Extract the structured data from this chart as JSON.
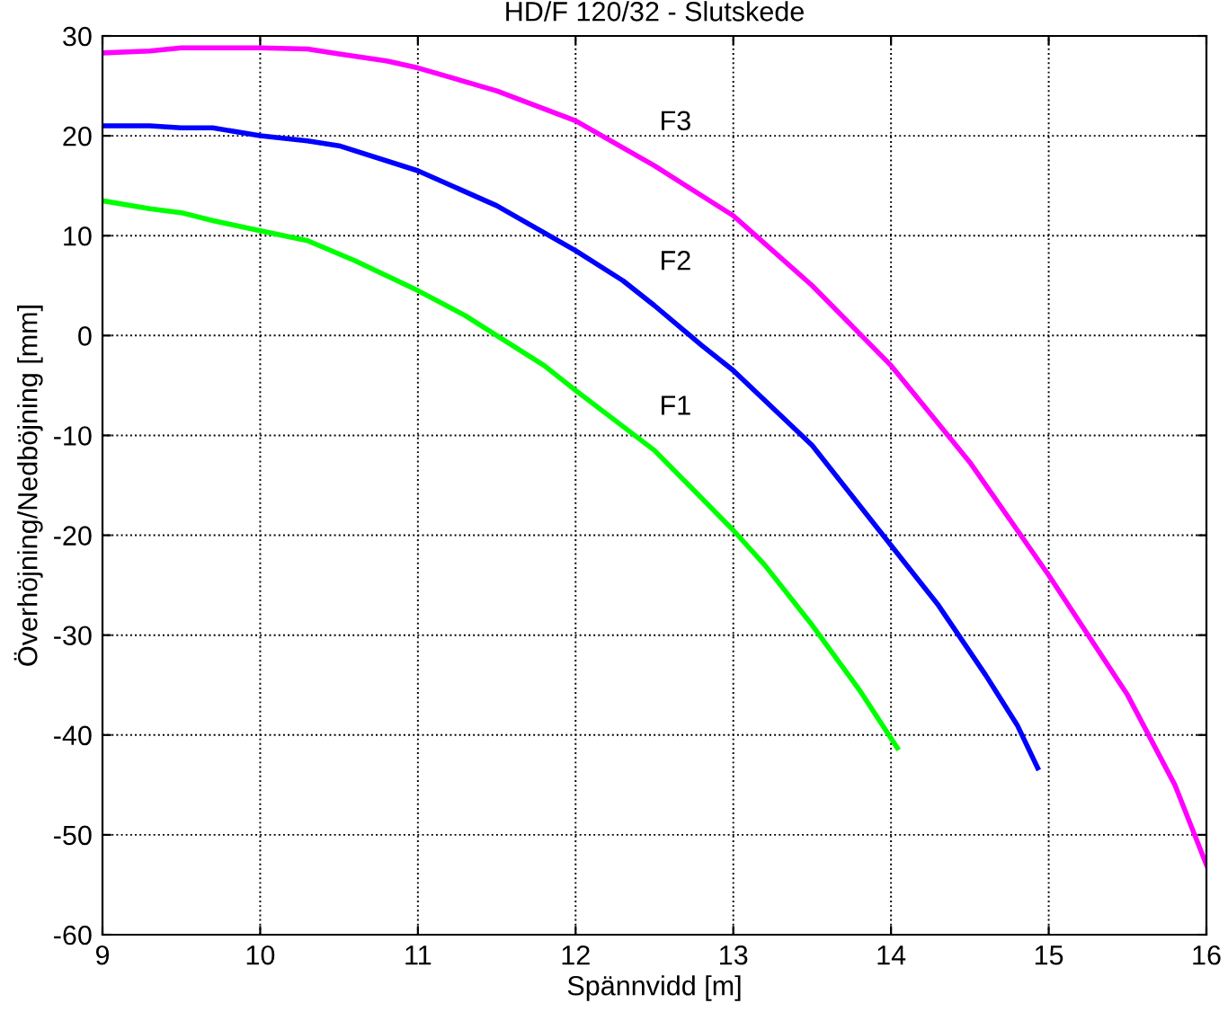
{
  "chart_data": {
    "type": "line",
    "title": "HD/F 120/32 - Slutskede",
    "xlabel": "Spännvidd [m]",
    "ylabel": "Överhöjning/Nedböjning [mm]",
    "xlim": [
      9,
      16
    ],
    "xticks": [
      9,
      10,
      11,
      12,
      13,
      14,
      15,
      16
    ],
    "ylim": [
      -60,
      30
    ],
    "yticks": [
      -60,
      -50,
      -40,
      -30,
      -20,
      -10,
      0,
      10,
      20,
      30
    ],
    "grid": true,
    "line_style": "solid",
    "series": [
      {
        "name": "F1",
        "color": "#00ff00",
        "x": [
          9,
          9.3,
          9.5,
          9.7,
          10,
          10.3,
          10.6,
          11,
          11.3,
          11.5,
          11.8,
          12,
          12.5,
          13,
          13.2,
          13.5,
          13.8,
          14.04
        ],
        "values": [
          13.5,
          12.7,
          12.3,
          11.5,
          10.5,
          9.5,
          7.5,
          4.5,
          2,
          0,
          -3,
          -5.5,
          -11.5,
          -19.5,
          -23,
          -29,
          -35.5,
          -41.3
        ]
      },
      {
        "name": "F2",
        "color": "#0000ff",
        "x": [
          9,
          9.3,
          9.5,
          9.7,
          10,
          10.3,
          10.5,
          11,
          11.5,
          12,
          12.3,
          12.5,
          12.8,
          13,
          13.5,
          14,
          14.3,
          14.6,
          14.8,
          14.93
        ],
        "values": [
          21,
          21,
          20.8,
          20.8,
          20,
          19.5,
          19,
          16.5,
          13,
          8.5,
          5.5,
          3,
          -1,
          -3.5,
          -11,
          -21,
          -27,
          -34,
          -39,
          -43.3
        ]
      },
      {
        "name": "F3",
        "color": "#ff00ff",
        "x": [
          9,
          9.3,
          9.5,
          10,
          10.3,
          10.5,
          10.8,
          11,
          11.5,
          12,
          12.5,
          12.8,
          13,
          13.5,
          14,
          14.5,
          15,
          15.5,
          15.8,
          16
        ],
        "values": [
          28.3,
          28.5,
          28.8,
          28.8,
          28.7,
          28.2,
          27.5,
          26.8,
          24.5,
          21.5,
          17,
          14,
          12,
          5,
          -3,
          -12.7,
          -24,
          -36,
          -45,
          -53
        ]
      }
    ]
  }
}
